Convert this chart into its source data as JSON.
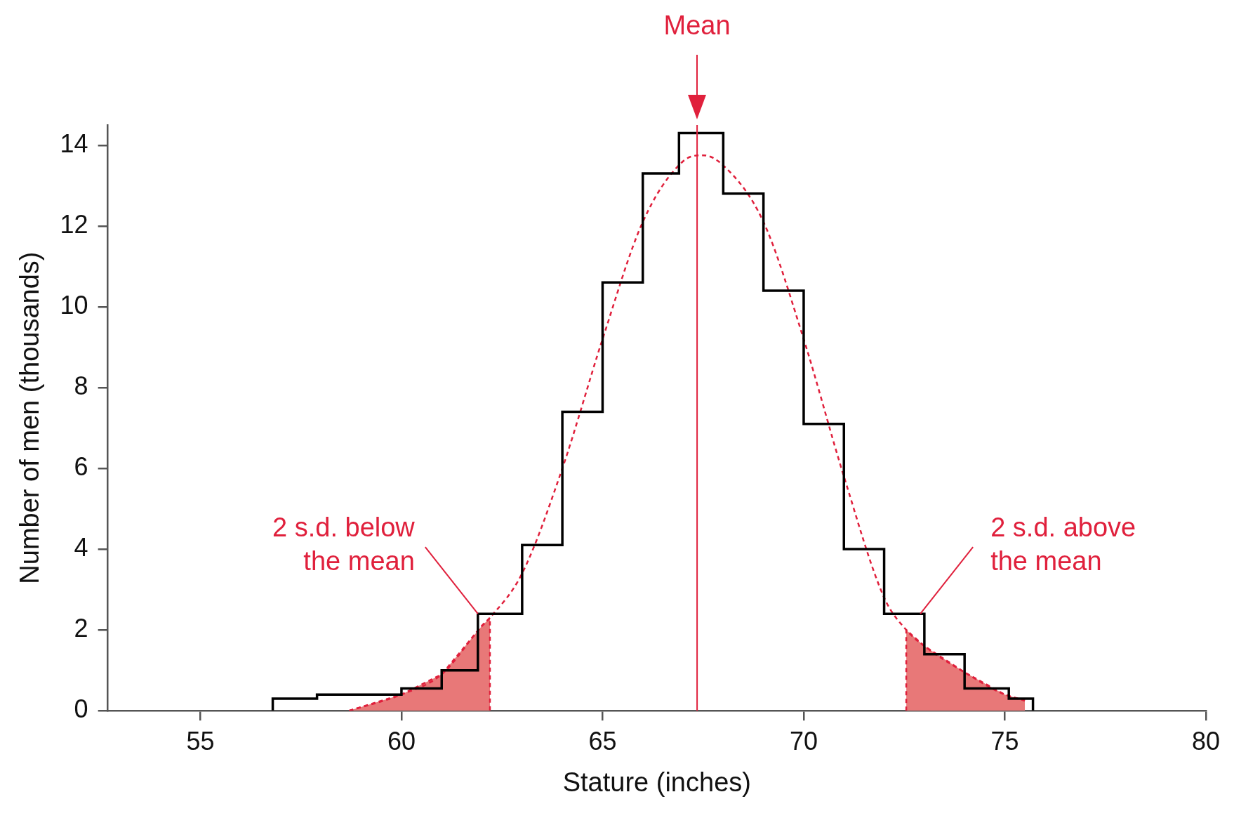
{
  "chart_data": {
    "type": "histogram",
    "xlabel": "Stature (inches)",
    "ylabel": "Number of men (thousands)",
    "bins": [
      56.8,
      57.9,
      60,
      61,
      61.9,
      63,
      64,
      65,
      66,
      66.9,
      68,
      69,
      70,
      71,
      72,
      73,
      74,
      75.1,
      75.7
    ],
    "values": [
      0.3,
      0.4,
      0.55,
      1.0,
      2.4,
      4.1,
      7.4,
      10.6,
      13.3,
      14.3,
      12.8,
      10.4,
      7.1,
      4.0,
      2.4,
      1.4,
      0.55,
      0.3
    ],
    "color": "#000000",
    "series": [
      {
        "type": "line",
        "color": "#e0203c",
        "line_style": "dashed",
        "x": [
          58.7,
          60,
          61,
          62,
          62.2,
          63,
          64,
          65,
          66,
          67,
          67.5,
          68,
          69,
          70,
          71,
          72,
          72.55,
          73,
          74,
          75,
          75.5
        ],
        "values": [
          0,
          0.4,
          0.9,
          2.1,
          2.3,
          3.4,
          6.0,
          9.2,
          12.1,
          13.6,
          13.75,
          13.5,
          12.1,
          9.2,
          5.8,
          2.8,
          2.0,
          1.6,
          0.95,
          0.4,
          0.25
        ]
      },
      {
        "type": "area",
        "color": "#e87878",
        "line_style": "dashed",
        "x": [
          58.7,
          60,
          61,
          62,
          62.2,
          62.2
        ],
        "values": [
          0,
          0.4,
          0.9,
          2.1,
          2.3,
          0
        ]
      },
      {
        "type": "area",
        "color": "#e87878",
        "line_style": "dashed",
        "x": [
          72.55,
          72.55,
          73,
          74,
          75,
          75.5
        ],
        "values": [
          0,
          2.0,
          1.6,
          0.95,
          0.4,
          0.25
        ]
      }
    ],
    "marker": "none",
    "xlim": [
      52.7,
      80
    ],
    "xticks": [
      55,
      60,
      65,
      70,
      75,
      80
    ],
    "ylim": [
      0,
      14.5
    ],
    "yticks": [
      0,
      2,
      4,
      6,
      8,
      10,
      12,
      14
    ],
    "ref_lines": [
      {
        "axis": "x",
        "value": 67.35,
        "label": "Mean",
        "color": "#e0203c"
      }
    ],
    "annotations": [
      {
        "text": "2 s.d. below\nthe mean",
        "x": 61.9,
        "y": 2.4
      },
      {
        "text": "2 s.d. above\nthe mean",
        "x": 72.9,
        "y": 2.4
      }
    ]
  }
}
